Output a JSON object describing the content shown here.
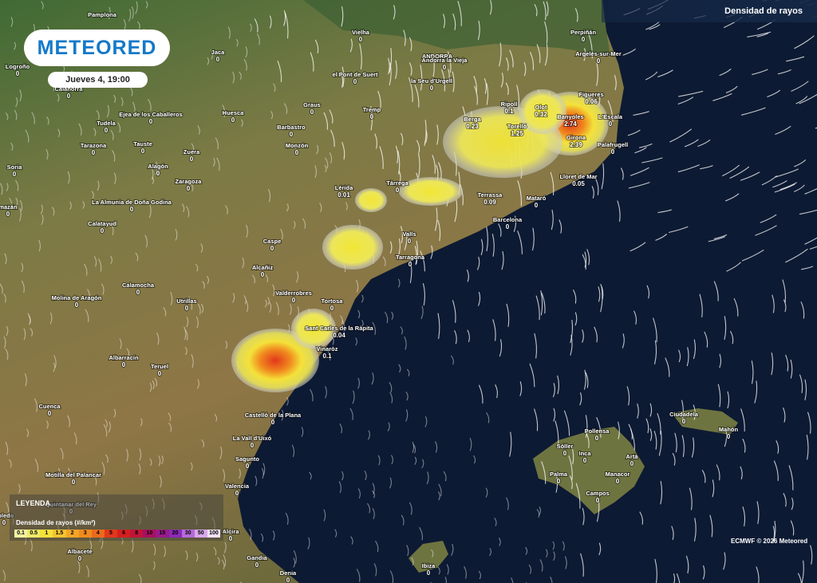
{
  "header": {
    "logo": "METEORED",
    "date": "Jueves 4, 19:00",
    "layer": "Densidad de rayos"
  },
  "map_labels": [
    "Pamplona",
    "ANDORRA"
  ],
  "cities": [
    {
      "name": "Logroño",
      "value": 0
    },
    {
      "name": "Jaca",
      "value": 0
    },
    {
      "name": "Vielha",
      "value": 0
    },
    {
      "name": "Andorra la Vieja",
      "value": 0
    },
    {
      "name": "Perpiñán",
      "value": 0
    },
    {
      "name": "Argelès-sur-Mer",
      "value": 0
    },
    {
      "name": "Calahorra",
      "value": 0
    },
    {
      "name": "el Pont de Suert",
      "value": 0
    },
    {
      "name": "la Seu d'Urgell",
      "value": 0
    },
    {
      "name": "Ejea de los Caballeros",
      "value": 0
    },
    {
      "name": "Huesca",
      "value": 0
    },
    {
      "name": "Graus",
      "value": 0
    },
    {
      "name": "Tremp",
      "value": 0
    },
    {
      "name": "Berga",
      "value": 0.23
    },
    {
      "name": "Ripoll",
      "value": 0.1
    },
    {
      "name": "Olot",
      "value": 0.32
    },
    {
      "name": "Figueres",
      "value": 0.06
    },
    {
      "name": "Banyoles",
      "value": 2.74
    },
    {
      "name": "L'Escala",
      "value": 0
    },
    {
      "name": "Tudela",
      "value": 0
    },
    {
      "name": "Barbastro",
      "value": 0
    },
    {
      "name": "Torelló",
      "value": 1.25
    },
    {
      "name": "Girona",
      "value": 2.39
    },
    {
      "name": "Tarazona",
      "value": 0
    },
    {
      "name": "Tauste",
      "value": 0
    },
    {
      "name": "Zuera",
      "value": 0
    },
    {
      "name": "Monzón",
      "value": 0
    },
    {
      "name": "Palafrugell",
      "value": 0
    },
    {
      "name": "Soria",
      "value": 0
    },
    {
      "name": "Alagón",
      "value": 0
    },
    {
      "name": "Tàrrega",
      "value": 0
    },
    {
      "name": "Lloret de Mar",
      "value": 0.05
    },
    {
      "name": "Zaragoza",
      "value": 0
    },
    {
      "name": "Lérida",
      "value": 0.01
    },
    {
      "name": "Terrassa",
      "value": 0.09
    },
    {
      "name": "Mataró",
      "value": 0
    },
    {
      "name": "mazán",
      "value": 0
    },
    {
      "name": "La Almunia de Doña Godina",
      "value": 0
    },
    {
      "name": "Barcelona",
      "value": 0
    },
    {
      "name": "Calatayud",
      "value": 0
    },
    {
      "name": "Caspe",
      "value": 0
    },
    {
      "name": "Valls",
      "value": 0
    },
    {
      "name": "Tarragona",
      "value": 0
    },
    {
      "name": "Alcañiz",
      "value": 0
    },
    {
      "name": "Calamocha",
      "value": 0
    },
    {
      "name": "Molina de Aragón",
      "value": 0
    },
    {
      "name": "Utrillas",
      "value": 0
    },
    {
      "name": "Valderrobres",
      "value": 0
    },
    {
      "name": "Tortosa",
      "value": 0
    },
    {
      "name": "Sant Carles de la Ràpita",
      "value": 0.04
    },
    {
      "name": "Vinaròz",
      "value": 0.1
    },
    {
      "name": "Albarracín",
      "value": 0
    },
    {
      "name": "Teruel",
      "value": 0
    },
    {
      "name": "Cuenca",
      "value": 0
    },
    {
      "name": "Castelló de la Plana",
      "value": 0
    },
    {
      "name": "Ciudadela",
      "value": 0
    },
    {
      "name": "Mahón",
      "value": 0
    },
    {
      "name": "Pollensa",
      "value": 0
    },
    {
      "name": "La Vall d'Uixó",
      "value": 0
    },
    {
      "name": "Sóller",
      "value": 0
    },
    {
      "name": "Inca",
      "value": 0
    },
    {
      "name": "Artà",
      "value": 0
    },
    {
      "name": "Sagunto",
      "value": 0
    },
    {
      "name": "Palma",
      "value": 0
    },
    {
      "name": "Manacor",
      "value": 0
    },
    {
      "name": "Motilla del Palancar",
      "value": 0
    },
    {
      "name": "Valencia",
      "value": 0
    },
    {
      "name": "Campos",
      "value": 0
    },
    {
      "name": "Quintanar del Rey",
      "value": 0
    },
    {
      "name": "obledo",
      "value": 0
    },
    {
      "name": "Alcira",
      "value": 0
    },
    {
      "name": "Albacete",
      "value": 0
    },
    {
      "name": "Gandia",
      "value": 0
    },
    {
      "name": "Ibiza",
      "value": 0
    },
    {
      "name": "Denia",
      "value": 0
    }
  ],
  "legend": {
    "title": "LEYENDA",
    "subtitle": "Densidad de rayos (#/km²)",
    "steps": [
      0.1,
      0.5,
      1,
      1.5,
      2,
      3,
      4,
      5,
      6,
      8,
      10,
      15,
      20,
      30,
      50,
      100
    ]
  },
  "footer": {
    "copyright": "ECMWF © 2026 Meteored"
  }
}
